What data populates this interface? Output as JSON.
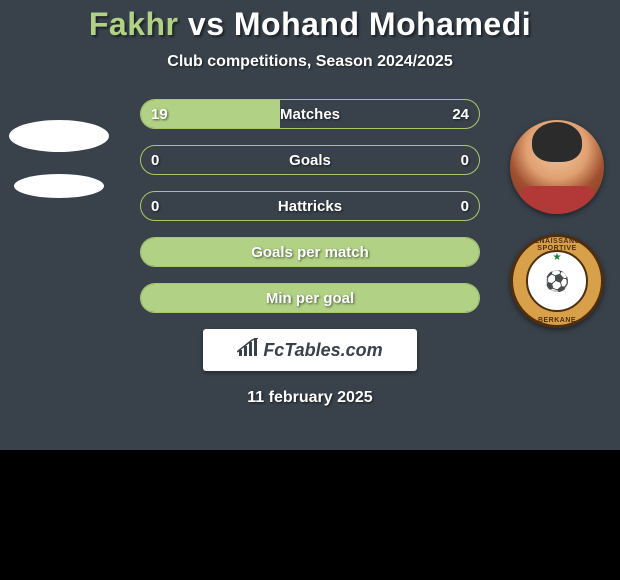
{
  "colors": {
    "page_bg": "#000000",
    "card_bg": "#39424b",
    "accent": "#b1d185",
    "bar_border": "#a8c86a",
    "white": "#ffffff"
  },
  "header": {
    "player1": "Fakhr",
    "vs": "vs",
    "player2": "Mohand Mohamedi"
  },
  "subtitle": "Club competitions, Season 2024/2025",
  "date": "11 february 2025",
  "brand": "FcTables.com",
  "badge": {
    "top": "RENAISSANCE SPORTIVE",
    "bottom": "BERKANE"
  },
  "bars": [
    {
      "label": "Matches",
      "left": "19",
      "right": "24",
      "left_pct": 41,
      "right_pct": 0,
      "show_left": true,
      "show_right": true
    },
    {
      "label": "Goals",
      "left": "0",
      "right": "0",
      "left_pct": 0,
      "right_pct": 0,
      "show_left": true,
      "show_right": true
    },
    {
      "label": "Hattricks",
      "left": "0",
      "right": "0",
      "left_pct": 0,
      "right_pct": 0,
      "show_left": true,
      "show_right": true
    },
    {
      "label": "Goals per match",
      "left": "",
      "right": "",
      "left_pct": 100,
      "right_pct": 0,
      "show_left": false,
      "show_right": false
    },
    {
      "label": "Min per goal",
      "left": "",
      "right": "",
      "left_pct": 100,
      "right_pct": 0,
      "show_left": false,
      "show_right": false
    }
  ]
}
